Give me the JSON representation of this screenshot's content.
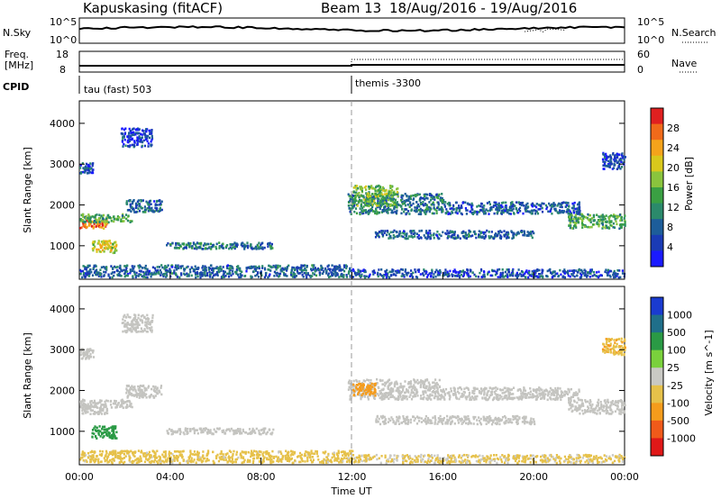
{
  "header": {
    "station": "Kapuskasing (fitACF)",
    "beam": "Beam 13",
    "dates": "18/Aug/2016 - 19/Aug/2016"
  },
  "side_labels": {
    "nsky": "N.Sky",
    "freq": "Freq.",
    "freq_unit": "[MHz]",
    "cpid": "CPID",
    "nsearch": "N.Search",
    "nave": "Nave"
  },
  "cpid_labels": {
    "left": "tau (fast) 503",
    "right": "themis -3300"
  },
  "noise_axis": {
    "left_ticks": [
      "10^5",
      "10^0"
    ],
    "right_ticks": [
      "10^5",
      "10^0"
    ]
  },
  "freq_axis": {
    "left_ticks": [
      "18",
      "8"
    ],
    "right_ticks": [
      "60",
      "0"
    ]
  },
  "colors": {
    "power_scale": [
      "#1a1aff",
      "#1a3bb5",
      "#1d5d9a",
      "#2b8a6b",
      "#3aa043",
      "#8ac43d",
      "#d9c81c",
      "#f5a31b",
      "#f06a1a",
      "#e02020"
    ],
    "velocity_scale": [
      "#1a3bd0",
      "#1f6f8a",
      "#2a9a45",
      "#7ad13c",
      "#c9c9c4",
      "#e6c14a",
      "#f59c1c",
      "#f05a1a",
      "#e01818"
    ],
    "ground_scatter": "#c4c4c0"
  },
  "chart_data": [
    {
      "type": "heatmap",
      "title": "",
      "ylabel": "Slant Range [km]",
      "xlabel": "",
      "ylim": [
        180,
        4550
      ],
      "yticks": [
        "1000",
        "2000",
        "3000",
        "4000"
      ],
      "colorbar": {
        "label": "Power [dB]",
        "range": [
          0,
          32
        ],
        "ticks": [
          "4",
          "8",
          "12",
          "16",
          "20",
          "24",
          "28"
        ]
      },
      "regions": [
        {
          "t0": 0.0,
          "t1": 1.2,
          "r0": 1450,
          "r1": 1650,
          "value": 26
        },
        {
          "t0": 0.0,
          "t1": 2.3,
          "r0": 1600,
          "r1": 1800,
          "value": 14
        },
        {
          "t0": 0.5,
          "t1": 1.6,
          "r0": 850,
          "r1": 1150,
          "value": 20
        },
        {
          "t0": 2.0,
          "t1": 3.6,
          "r0": 1850,
          "r1": 2150,
          "value": 8
        },
        {
          "t0": 0.0,
          "t1": 0.6,
          "r0": 2800,
          "r1": 3050,
          "value": 6
        },
        {
          "t0": 1.8,
          "t1": 3.2,
          "r0": 3450,
          "r1": 3900,
          "value": 5
        },
        {
          "t0": 3.8,
          "t1": 6.0,
          "r0": 950,
          "r1": 1100,
          "value": 10
        },
        {
          "t0": 6.0,
          "t1": 8.5,
          "r0": 950,
          "r1": 1100,
          "value": 9
        },
        {
          "t0": 0.0,
          "t1": 12.0,
          "r0": 250,
          "r1": 550,
          "value": 8
        },
        {
          "t0": 11.8,
          "t1": 16.0,
          "r0": 1800,
          "r1": 2300,
          "value": 10
        },
        {
          "t0": 12.0,
          "t1": 14.0,
          "r0": 2000,
          "r1": 2500,
          "value": 16
        },
        {
          "t0": 13.0,
          "t1": 20.0,
          "r0": 1200,
          "r1": 1400,
          "value": 8
        },
        {
          "t0": 12.0,
          "t1": 24.0,
          "r0": 250,
          "r1": 450,
          "value": 6
        },
        {
          "t0": 16.0,
          "t1": 22.0,
          "r0": 1800,
          "r1": 2100,
          "value": 7
        },
        {
          "t0": 21.5,
          "t1": 24.0,
          "r0": 1450,
          "r1": 1800,
          "value": 14
        },
        {
          "t0": 23.0,
          "t1": 24.0,
          "r0": 2900,
          "r1": 3300,
          "value": 5
        }
      ]
    },
    {
      "type": "heatmap",
      "title": "",
      "ylabel": "Slant Range [km]",
      "xlabel": "Time UT",
      "xticks": [
        "00:00",
        "04:00",
        "08:00",
        "12:00",
        "16:00",
        "20:00",
        "00:00"
      ],
      "ylim": [
        180,
        4550
      ],
      "yticks": [
        "1000",
        "2000",
        "3000",
        "4000"
      ],
      "colorbar": {
        "label": "Velocity [m s^-1]",
        "ticks": [
          "1000",
          "500",
          "100",
          "25",
          "-25",
          "-100",
          "-500",
          "-1000"
        ]
      },
      "regions": [
        {
          "t0": 0.0,
          "t1": 1.2,
          "r0": 1450,
          "r1": 1650,
          "value": 0,
          "ground": true
        },
        {
          "t0": 0.0,
          "t1": 2.3,
          "r0": 1600,
          "r1": 1800,
          "value": 0,
          "ground": true
        },
        {
          "t0": 0.5,
          "t1": 1.6,
          "r0": 850,
          "r1": 1150,
          "value": 150
        },
        {
          "t0": 2.0,
          "t1": 3.6,
          "r0": 1850,
          "r1": 2150,
          "value": 0,
          "ground": true
        },
        {
          "t0": 0.0,
          "t1": 0.6,
          "r0": 2800,
          "r1": 3050,
          "value": 0,
          "ground": true
        },
        {
          "t0": 1.8,
          "t1": 3.2,
          "r0": 3450,
          "r1": 3900,
          "value": 0,
          "ground": true
        },
        {
          "t0": 3.8,
          "t1": 8.5,
          "r0": 950,
          "r1": 1100,
          "value": 0,
          "ground": true
        },
        {
          "t0": 0.0,
          "t1": 12.0,
          "r0": 250,
          "r1": 550,
          "value": -60
        },
        {
          "t0": 11.8,
          "t1": 16.0,
          "r0": 1800,
          "r1": 2300,
          "value": 0,
          "ground": true
        },
        {
          "t0": 12.0,
          "t1": 13.0,
          "r0": 1900,
          "r1": 2200,
          "value": -250
        },
        {
          "t0": 13.0,
          "t1": 20.0,
          "r0": 1200,
          "r1": 1400,
          "value": 0,
          "ground": true
        },
        {
          "t0": 12.0,
          "t1": 24.0,
          "r0": 250,
          "r1": 450,
          "value": -40
        },
        {
          "t0": 16.0,
          "t1": 22.0,
          "r0": 1800,
          "r1": 2100,
          "value": 0,
          "ground": true
        },
        {
          "t0": 21.5,
          "t1": 24.0,
          "r0": 1450,
          "r1": 1800,
          "value": 0,
          "ground": true
        },
        {
          "t0": 23.0,
          "t1": 24.0,
          "r0": 2900,
          "r1": 3300,
          "value": -80
        }
      ]
    }
  ]
}
